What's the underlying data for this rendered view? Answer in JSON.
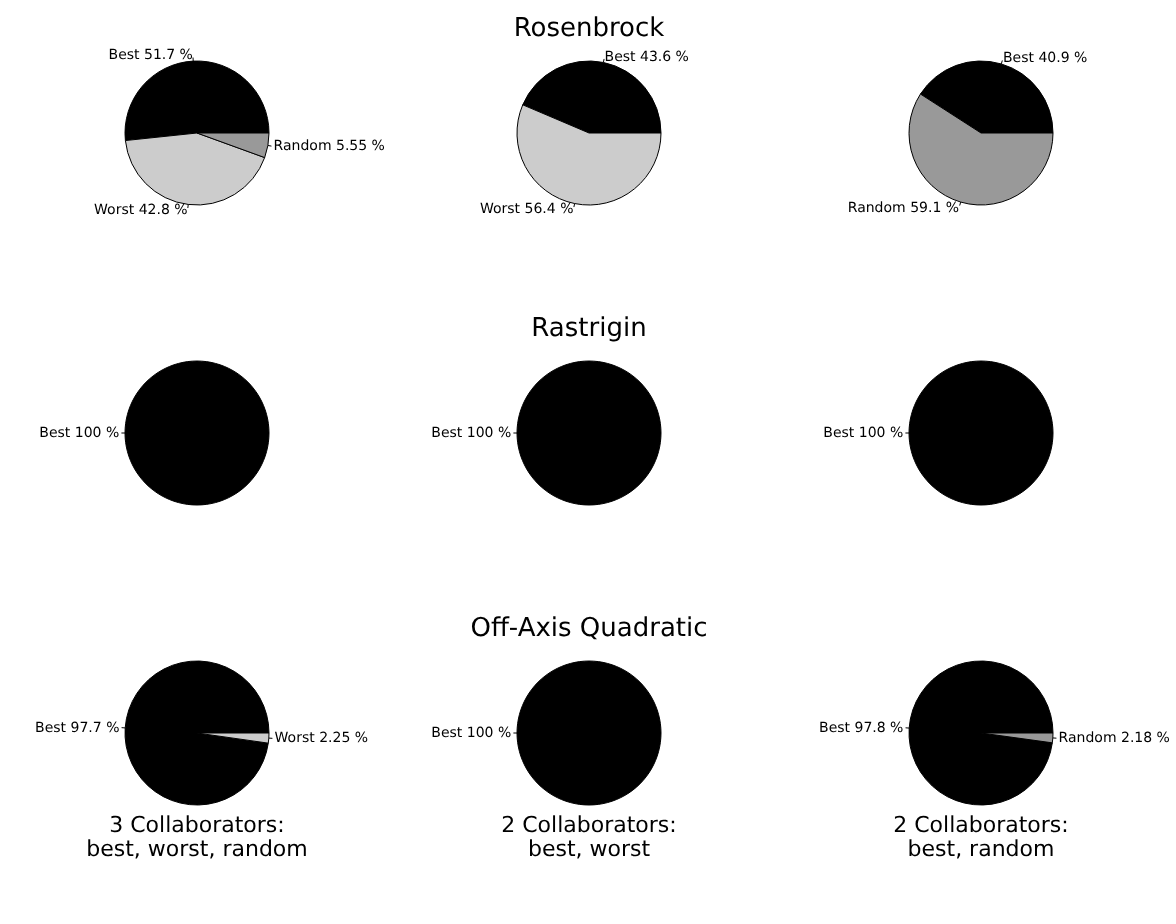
{
  "chart_data": [
    {
      "type": "pie",
      "categories": [
        "Best",
        "Worst",
        "Random"
      ],
      "values": [
        51.7,
        42.8,
        5.55
      ],
      "colors": [
        "#000000",
        "#cccccc",
        "#999999"
      ],
      "value_labels": [
        "51.7 %",
        "42.8 %",
        "5.55 %"
      ]
    },
    {
      "type": "pie",
      "title": "Rosenbrock",
      "categories": [
        "Best",
        "Worst"
      ],
      "values": [
        43.6,
        56.4
      ],
      "colors": [
        "#000000",
        "#cccccc"
      ],
      "value_labels": [
        "43.6 %",
        "56.4 %"
      ]
    },
    {
      "type": "pie",
      "categories": [
        "Best",
        "Random"
      ],
      "values": [
        40.9,
        59.1
      ],
      "colors": [
        "#000000",
        "#999999"
      ],
      "value_labels": [
        "40.9 %",
        "59.1 %"
      ]
    },
    {
      "type": "pie",
      "categories": [
        "Best"
      ],
      "values": [
        100
      ],
      "colors": [
        "#000000"
      ],
      "value_labels": [
        "100 %"
      ]
    },
    {
      "type": "pie",
      "title": "Rastrigin",
      "categories": [
        "Best"
      ],
      "values": [
        100
      ],
      "colors": [
        "#000000"
      ],
      "value_labels": [
        "100 %"
      ]
    },
    {
      "type": "pie",
      "categories": [
        "Best"
      ],
      "values": [
        100
      ],
      "colors": [
        "#000000"
      ],
      "value_labels": [
        "100 %"
      ]
    },
    {
      "type": "pie",
      "categories": [
        "Best",
        "Worst"
      ],
      "values": [
        97.7,
        2.25
      ],
      "colors": [
        "#000000",
        "#cccccc"
      ],
      "value_labels": [
        "97.7 %",
        "2.25 %"
      ],
      "xlabel": "3 Collaborators:\nbest, worst, random"
    },
    {
      "type": "pie",
      "title": "Off-Axis Quadratic",
      "categories": [
        "Best"
      ],
      "values": [
        100
      ],
      "colors": [
        "#000000"
      ],
      "value_labels": [
        "100 %"
      ],
      "xlabel": "2 Collaborators:\nbest, worst"
    },
    {
      "type": "pie",
      "categories": [
        "Best",
        "Random"
      ],
      "values": [
        97.8,
        2.18
      ],
      "colors": [
        "#000000",
        "#999999"
      ],
      "value_labels": [
        "97.8 %",
        "2.18 %"
      ],
      "xlabel": "2 Collaborators:\nbest, random"
    }
  ]
}
